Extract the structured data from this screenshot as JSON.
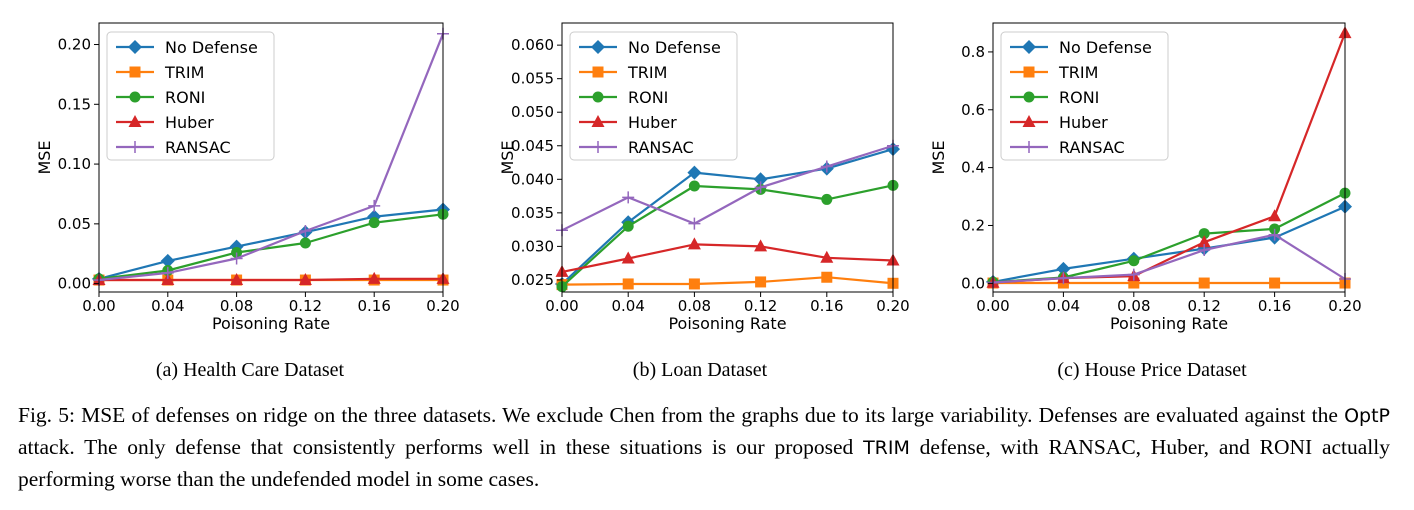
{
  "chart_data": [
    {
      "type": "line",
      "subcaption": "(a) Health Care Dataset",
      "xlabel": "Poisoning Rate",
      "ylabel": "MSE",
      "xlim": [
        0.0,
        0.2
      ],
      "ylim": [
        -0.007,
        0.218
      ],
      "xticks": [
        0.0,
        0.04,
        0.08,
        0.12,
        0.16,
        0.2
      ],
      "xtick_labels": [
        "0.00",
        "0.04",
        "0.08",
        "0.12",
        "0.16",
        "0.20"
      ],
      "yticks": [
        0.0,
        0.05,
        0.1,
        0.15,
        0.2
      ],
      "ytick_labels": [
        "0.00",
        "0.05",
        "0.10",
        "0.15",
        "0.20"
      ],
      "legend_position": "top-left",
      "x": [
        0.0,
        0.04,
        0.08,
        0.12,
        0.16,
        0.2
      ],
      "series": [
        {
          "name": "No Defense",
          "color": "#1f77b4",
          "marker": "diamond",
          "values": [
            0.004,
            0.019,
            0.031,
            0.043,
            0.056,
            0.062
          ]
        },
        {
          "name": "TRIM",
          "color": "#ff7f0e",
          "marker": "square",
          "values": [
            0.003,
            0.003,
            0.003,
            0.003,
            0.003,
            0.003
          ]
        },
        {
          "name": "RONI",
          "color": "#2ca02c",
          "marker": "circle",
          "values": [
            0.004,
            0.011,
            0.026,
            0.034,
            0.051,
            0.058
          ]
        },
        {
          "name": "Huber",
          "color": "#d62728",
          "marker": "triangle",
          "values": [
            0.003,
            0.003,
            0.003,
            0.003,
            0.004,
            0.004
          ]
        },
        {
          "name": "RANSAC",
          "color": "#9467bd",
          "marker": "plus",
          "values": [
            0.003,
            0.009,
            0.021,
            0.044,
            0.065,
            0.209
          ]
        }
      ]
    },
    {
      "type": "line",
      "subcaption": "(b) Loan Dataset",
      "xlabel": "Poisoning Rate",
      "ylabel": "MSE",
      "xlim": [
        0.0,
        0.2
      ],
      "ylim": [
        0.0232,
        0.0633
      ],
      "xticks": [
        0.0,
        0.04,
        0.08,
        0.12,
        0.16,
        0.2
      ],
      "xtick_labels": [
        "0.00",
        "0.04",
        "0.08",
        "0.12",
        "0.16",
        "0.20"
      ],
      "yticks": [
        0.025,
        0.03,
        0.035,
        0.04,
        0.045,
        0.05,
        0.055,
        0.06
      ],
      "ytick_labels": [
        "0.025",
        "0.030",
        "0.035",
        "0.040",
        "0.045",
        "0.050",
        "0.055",
        "0.060"
      ],
      "legend_position": "top-left",
      "x": [
        0.0,
        0.04,
        0.08,
        0.12,
        0.16,
        0.2
      ],
      "series": [
        {
          "name": "No Defense",
          "color": "#1f77b4",
          "marker": "diamond",
          "values": [
            0.0244,
            0.0336,
            0.041,
            0.04,
            0.0416,
            0.0445
          ]
        },
        {
          "name": "TRIM",
          "color": "#ff7f0e",
          "marker": "square",
          "values": [
            0.0243,
            0.0244,
            0.0244,
            0.0247,
            0.0254,
            0.0245
          ]
        },
        {
          "name": "RONI",
          "color": "#2ca02c",
          "marker": "circle",
          "values": [
            0.024,
            0.033,
            0.039,
            0.0385,
            0.037,
            0.0391
          ]
        },
        {
          "name": "Huber",
          "color": "#d62728",
          "marker": "triangle",
          "values": [
            0.0262,
            0.0282,
            0.0303,
            0.03,
            0.0283,
            0.0279
          ]
        },
        {
          "name": "RANSAC",
          "color": "#9467bd",
          "marker": "plus",
          "values": [
            0.0324,
            0.0373,
            0.0334,
            0.0388,
            0.0419,
            0.045
          ]
        }
      ]
    },
    {
      "type": "line",
      "subcaption": "(c) House Price Dataset",
      "xlabel": "Poisoning Rate",
      "ylabel": "MSE",
      "xlim": [
        0.0,
        0.2
      ],
      "ylim": [
        -0.03,
        0.9
      ],
      "xticks": [
        0.0,
        0.04,
        0.08,
        0.12,
        0.16,
        0.2
      ],
      "xtick_labels": [
        "0.00",
        "0.04",
        "0.08",
        "0.12",
        "0.16",
        "0.20"
      ],
      "yticks": [
        0.0,
        0.2,
        0.4,
        0.6,
        0.8
      ],
      "ytick_labels": [
        "0.0",
        "0.2",
        "0.4",
        "0.6",
        "0.8"
      ],
      "legend_position": "top-left",
      "x": [
        0.0,
        0.04,
        0.08,
        0.12,
        0.16,
        0.2
      ],
      "series": [
        {
          "name": "No Defense",
          "color": "#1f77b4",
          "marker": "diamond",
          "values": [
            0.005,
            0.05,
            0.085,
            0.12,
            0.158,
            0.265
          ]
        },
        {
          "name": "TRIM",
          "color": "#ff7f0e",
          "marker": "square",
          "values": [
            0.001,
            0.001,
            0.001,
            0.001,
            0.001,
            0.001
          ]
        },
        {
          "name": "RONI",
          "color": "#2ca02c",
          "marker": "circle",
          "values": [
            0.004,
            0.02,
            0.078,
            0.172,
            0.188,
            0.312
          ]
        },
        {
          "name": "Huber",
          "color": "#d62728",
          "marker": "triangle",
          "values": [
            0.002,
            0.018,
            0.025,
            0.142,
            0.232,
            0.865
          ]
        },
        {
          "name": "RANSAC",
          "color": "#9467bd",
          "marker": "plus",
          "values": [
            0.003,
            0.018,
            0.03,
            0.115,
            0.168,
            0.015
          ]
        }
      ]
    }
  ],
  "caption": {
    "prefix": "Fig. 5: MSE of defenses on ridge on the three datasets. We exclude Chen from the graphs due to its large variability. Defenses are evaluated against the ",
    "attack": "OptP",
    "middle": " attack. The only defense that consistently performs well in these situations is our proposed ",
    "trim": "TRIM",
    "suffix": " defense, with RANSAC, Huber, and RONI actually performing worse than the undefended model in some cases."
  }
}
